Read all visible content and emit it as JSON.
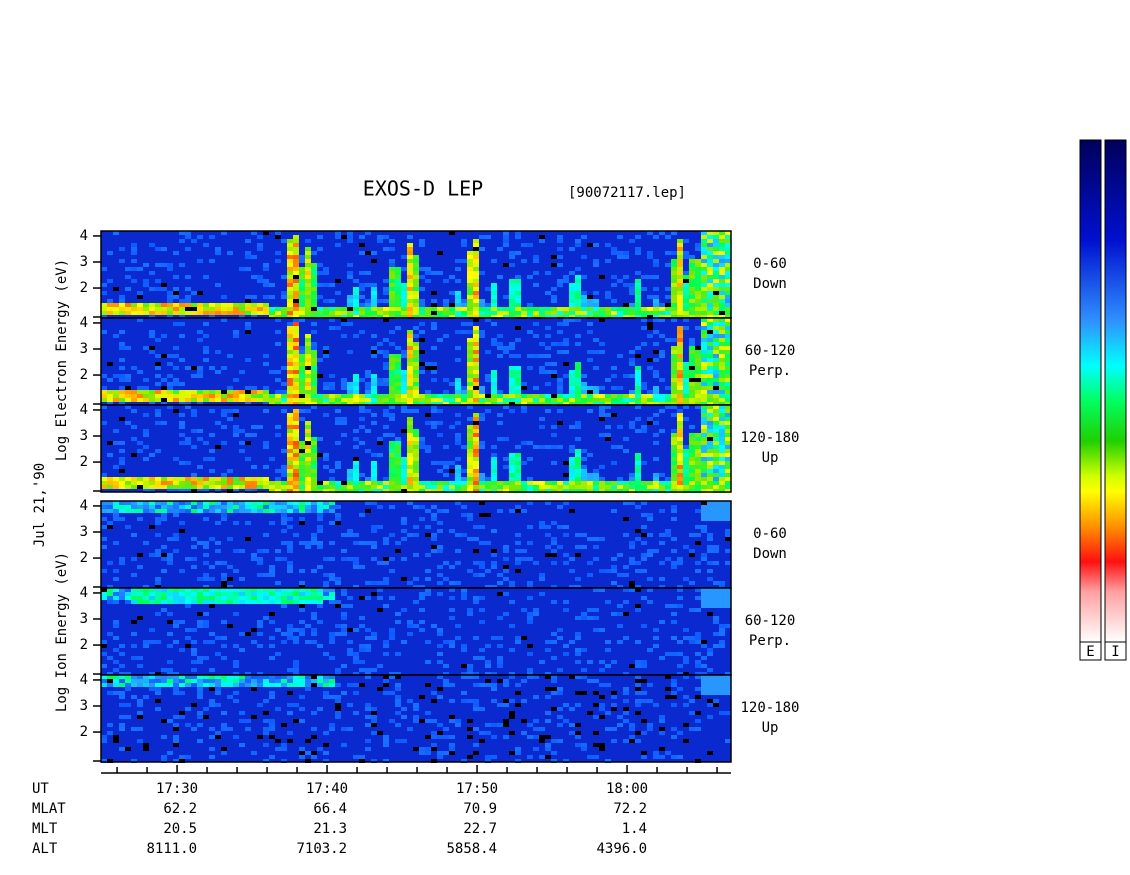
{
  "title": "EXOS-D LEP",
  "file": "[90072117.lep]",
  "electron_axis_label": "Log Electron Energy (eV)",
  "ion_axis_label": "Log Ion Energy (eV)",
  "date": "Jul 21,'90",
  "panels": [
    {
      "species": "electron",
      "angle": "0-60",
      "direction": "Down",
      "ylim": [
        0.85,
        4.19
      ],
      "yticks": [
        2,
        3,
        4
      ]
    },
    {
      "species": "electron",
      "angle": "60-120",
      "direction": "Perp.",
      "ylim": [
        0.85,
        4.19
      ],
      "yticks": [
        2,
        3,
        4
      ]
    },
    {
      "species": "electron",
      "angle": "120-180",
      "direction": "Up",
      "ylim": [
        0.85,
        4.19
      ],
      "yticks": [
        2,
        3,
        4
      ]
    },
    {
      "species": "ion",
      "angle": "0-60",
      "direction": "Down",
      "ylim": [
        0.85,
        4.19
      ],
      "yticks": [
        2,
        3,
        4
      ]
    },
    {
      "species": "ion",
      "angle": "60-120",
      "direction": "Perp.",
      "ylim": [
        0.85,
        4.19
      ],
      "yticks": [
        2,
        3,
        4
      ]
    },
    {
      "species": "ion",
      "angle": "120-180",
      "direction": "Up",
      "ylim": [
        0.85,
        4.19
      ],
      "yticks": [
        2,
        3,
        4
      ]
    }
  ],
  "time_axis": {
    "xlim": [
      1044.93,
      1086.93
    ],
    "xticks": [
      {
        "value": 1050,
        "label": "17:30"
      },
      {
        "value": 1060,
        "label": "17:40"
      },
      {
        "value": 1070,
        "label": "17:50"
      },
      {
        "value": 1080,
        "label": "18:00"
      }
    ],
    "minor_xticks": [
      1046,
      1048,
      1052,
      1054,
      1056,
      1058,
      1062,
      1064,
      1066,
      1068,
      1072,
      1074,
      1076,
      1078,
      1082,
      1084,
      1086
    ]
  },
  "orbit": {
    "rows": [
      {
        "label": "UT"
      },
      {
        "label": "MLAT",
        "values": [
          "62.2",
          "66.4",
          "70.9",
          "72.2"
        ]
      },
      {
        "label": "MLT",
        "values": [
          "20.5",
          "21.3",
          "22.7",
          "1.4"
        ]
      },
      {
        "label": "ALT",
        "values": [
          "8111.0",
          "7103.2",
          "5858.4",
          "4396.0"
        ]
      }
    ]
  },
  "colorbar_labels": [
    "E",
    "I"
  ]
}
